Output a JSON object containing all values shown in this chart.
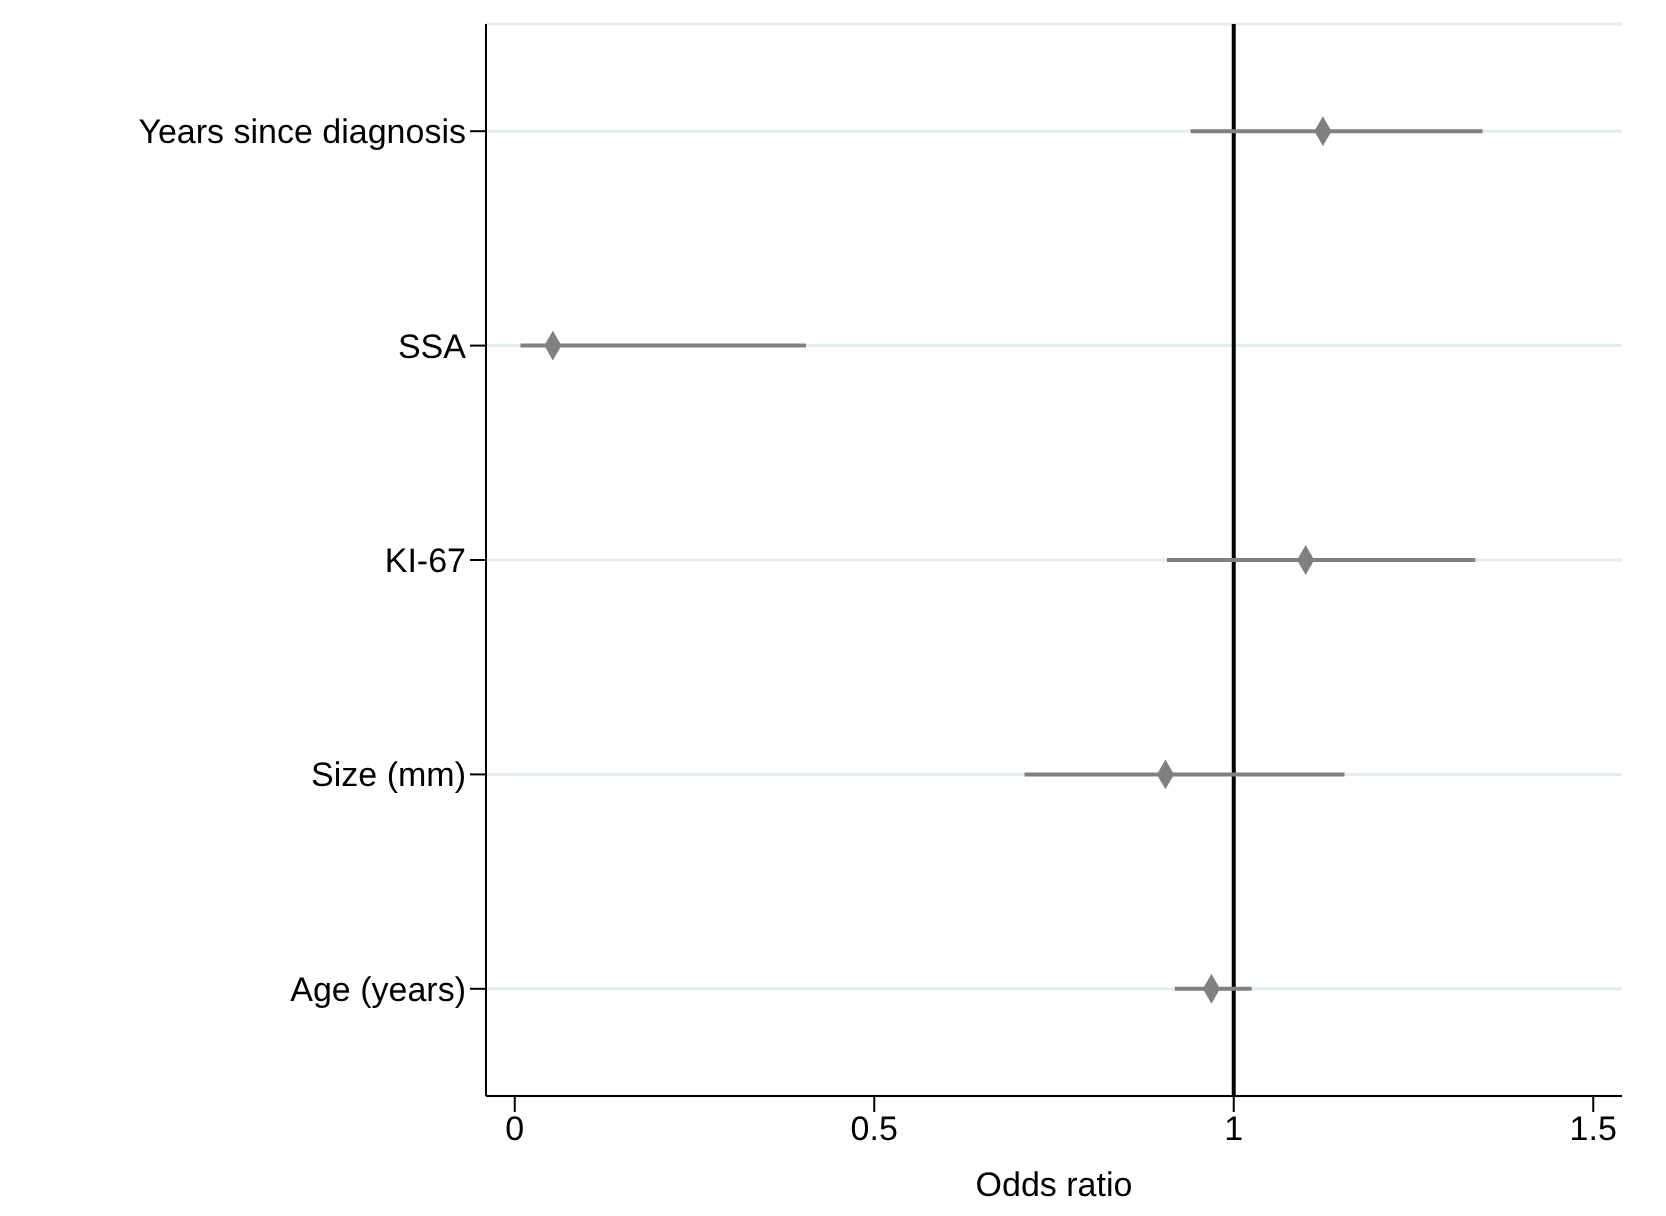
{
  "chart_data": {
    "type": "scatter",
    "orientation": "horizontal",
    "xlabel": "Odds ratio",
    "categories": [
      "Years since diagnosis",
      "SSA",
      "KI-67",
      "Size (mm)",
      "Age (years)"
    ],
    "values": [
      1.124,
      0.053,
      1.1,
      0.905,
      0.969
    ],
    "errors": [
      [
        0.94,
        1.346
      ],
      [
        0.008,
        0.405
      ],
      [
        0.907,
        1.336
      ],
      [
        0.709,
        1.154
      ],
      [
        0.918,
        1.025
      ]
    ],
    "color": "#808080",
    "marker": "diamond",
    "xlim": [
      -0.04,
      1.54
    ],
    "xticks": [
      0,
      0.5,
      1,
      1.5
    ],
    "ref_lines": [
      {
        "axis": "x",
        "value": 1,
        "color": "#000000"
      }
    ],
    "grid": "y"
  }
}
